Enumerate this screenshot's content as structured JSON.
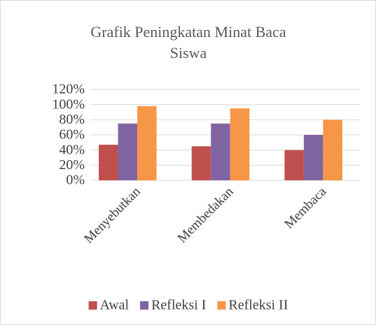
{
  "chart_data": {
    "type": "bar",
    "title": "Grafik Peningkatan Minat Baca Siswa",
    "categories": [
      "Menyebutkan",
      "Membedakan",
      "Membaca"
    ],
    "series": [
      {
        "name": "Awal",
        "color": "#c0504d",
        "values": [
          47,
          45,
          40
        ]
      },
      {
        "name": "Refleksi I",
        "color": "#8064a2",
        "values": [
          75,
          75,
          60
        ]
      },
      {
        "name": "Refleksi II",
        "color": "#f79646",
        "values": [
          98,
          95,
          80
        ]
      }
    ],
    "ylim": [
      0,
      120
    ],
    "yticks": [
      {
        "value": 0,
        "label": "0%"
      },
      {
        "value": 20,
        "label": "20%"
      },
      {
        "value": 40,
        "label": "40%"
      },
      {
        "value": 60,
        "label": "60%"
      },
      {
        "value": 80,
        "label": "80%"
      },
      {
        "value": 100,
        "label": "100%"
      },
      {
        "value": 120,
        "label": "120%"
      }
    ],
    "grid": true,
    "legend": "bottom"
  }
}
